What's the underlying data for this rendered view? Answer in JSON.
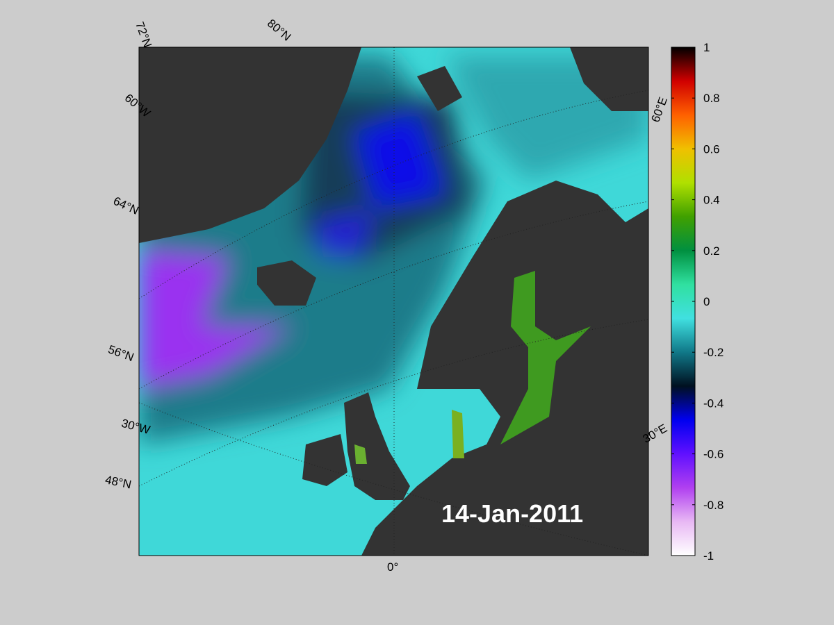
{
  "map": {
    "date": "14-Jan-2011",
    "graticule_labels": [
      "72°N",
      "80°N",
      "60°W",
      "64°N",
      "56°N",
      "30°W",
      "48°N",
      "0°",
      "30°E",
      "60°E"
    ]
  },
  "colorbar": {
    "lim": [
      -1,
      1
    ],
    "ticks": [
      -1,
      -0.8,
      -0.6,
      -0.4,
      -0.2,
      0,
      0.2,
      0.4,
      0.6,
      0.8,
      1
    ],
    "colors": [
      "#ffffff",
      "#e8b8f4",
      "#b040f0",
      "#6010ff",
      "#0000f0",
      "#001020",
      "#107888",
      "#40e0e0",
      "#30e0a0",
      "#009040",
      "#40a000",
      "#b0e000",
      "#f0c000",
      "#ff6000",
      "#d00000",
      "#000000"
    ]
  }
}
